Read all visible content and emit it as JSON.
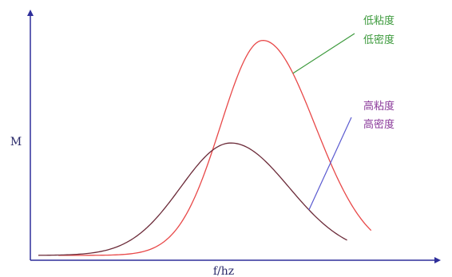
{
  "chart_data": {
    "type": "line",
    "title": "",
    "xlabel": "f/hz",
    "ylabel": "M",
    "grid": false,
    "legend": "none",
    "ticks": false,
    "series": [
      {
        "label_lines": [
          "低粘度",
          "低密度"
        ],
        "color": "#e84848",
        "label_color": "#3c9a3c",
        "leader_color": "#3c9a3c",
        "peak_x": 0.58,
        "peak_y": 0.9,
        "width_left": 0.105,
        "width_right": 0.13,
        "x_start": 0.07,
        "x_end": 0.85,
        "baseline": 0.02
      },
      {
        "label_lines": [
          "高粘度",
          "高密度"
        ],
        "color": "#6b2a38",
        "label_color": "#8a3a9a",
        "leader_color": "#5a5ad0",
        "peak_x": 0.5,
        "peak_y": 0.48,
        "width_left": 0.125,
        "width_right": 0.145,
        "x_start": 0.02,
        "x_end": 0.79,
        "baseline": 0.02
      }
    ],
    "xlim": [
      0,
      1
    ],
    "ylim": [
      0,
      1
    ]
  },
  "colors": {
    "axis": "#2e2e9a",
    "axis_title": "#2a2a6a"
  }
}
